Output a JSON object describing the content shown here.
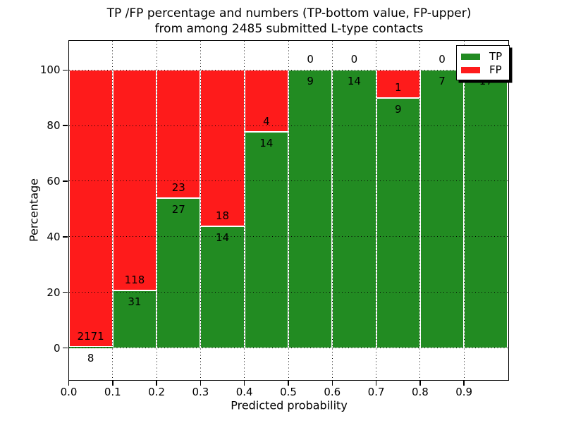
{
  "figure": {
    "title_line1": "TP /FP percentage and numbers (TP-bottom value, FP-upper)",
    "title_line2": "from among 2485 submitted L-type contacts"
  },
  "chart_data": {
    "type": "bar",
    "variant": "stacked-percentage",
    "title": "TP /FP percentage and numbers (TP-bottom value, FP-upper) from among 2485 submitted L-type contacts",
    "xlabel": "Predicted probability",
    "ylabel": "Percentage",
    "xlim": [
      0.0,
      1.0
    ],
    "ylim": [
      -11.4,
      110.6
    ],
    "grid": "dotted",
    "total_submitted": 2485,
    "annotation_note": "TP count below boundary, FP count above boundary",
    "x_tick_labels": [
      "0.0",
      "0.1",
      "0.2",
      "0.3",
      "0.4",
      "0.5",
      "0.6",
      "0.7",
      "0.8",
      "0.9"
    ],
    "y_tick_values": [
      0,
      20,
      40,
      60,
      80,
      100
    ],
    "y_tick_labels": [
      "0",
      "20",
      "40",
      "60",
      "80",
      "100"
    ],
    "legend": {
      "position": "upper right",
      "entries": [
        {
          "label": "TP",
          "color": "#228b22"
        },
        {
          "label": "FP",
          "color": "#fe1b1b"
        }
      ]
    },
    "bins": [
      {
        "x_start": 0.0,
        "x_end": 0.1,
        "tp": 8,
        "fp": 2171,
        "tp_pct": 0.37
      },
      {
        "x_start": 0.1,
        "x_end": 0.2,
        "tp": 31,
        "fp": 118,
        "tp_pct": 20.81
      },
      {
        "x_start": 0.2,
        "x_end": 0.3,
        "tp": 27,
        "fp": 23,
        "tp_pct": 54.0
      },
      {
        "x_start": 0.3,
        "x_end": 0.4,
        "tp": 14,
        "fp": 18,
        "tp_pct": 43.75
      },
      {
        "x_start": 0.4,
        "x_end": 0.5,
        "tp": 14,
        "fp": 4,
        "tp_pct": 77.78
      },
      {
        "x_start": 0.5,
        "x_end": 0.6,
        "tp": 9,
        "fp": 0,
        "tp_pct": 100.0
      },
      {
        "x_start": 0.6,
        "x_end": 0.7,
        "tp": 14,
        "fp": 0,
        "tp_pct": 100.0
      },
      {
        "x_start": 0.7,
        "x_end": 0.8,
        "tp": 9,
        "fp": 1,
        "tp_pct": 90.0
      },
      {
        "x_start": 0.8,
        "x_end": 0.9,
        "tp": 7,
        "fp": 0,
        "tp_pct": 100.0
      },
      {
        "x_start": 0.9,
        "x_end": 1.0,
        "tp": 17,
        "fp": 0,
        "tp_pct": 100.0
      }
    ],
    "colors": {
      "tp": "#228b22",
      "fp": "#fe1b1b",
      "bar_edge": "#ffffff",
      "grid": "#000000",
      "text": "#000000",
      "background": "#ffffff"
    }
  }
}
